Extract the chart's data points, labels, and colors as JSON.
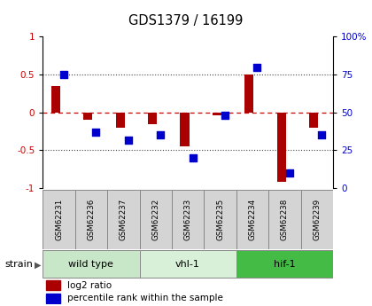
{
  "title": "GDS1379 / 16199",
  "samples": [
    "GSM62231",
    "GSM62236",
    "GSM62237",
    "GSM62232",
    "GSM62233",
    "GSM62235",
    "GSM62234",
    "GSM62238",
    "GSM62239"
  ],
  "log2_ratio": [
    0.35,
    -0.1,
    -0.2,
    -0.15,
    -0.45,
    -0.04,
    0.5,
    -0.92,
    -0.2
  ],
  "percentile": [
    75,
    37,
    32,
    35,
    20,
    48,
    80,
    10,
    35
  ],
  "groups": [
    {
      "label": "wild type",
      "start": 0,
      "end": 3,
      "color": "#c8e6c8"
    },
    {
      "label": "vhl-1",
      "start": 3,
      "end": 6,
      "color": "#d8f0d8"
    },
    {
      "label": "hif-1",
      "start": 6,
      "end": 9,
      "color": "#44bb44"
    }
  ],
  "ylim": [
    -1,
    1
  ],
  "y_left_ticks": [
    -1,
    -0.5,
    0,
    0.5,
    1
  ],
  "y_left_labels": [
    "-1",
    "-0.5",
    "0",
    "0.5",
    "1"
  ],
  "y_right_ticks": [
    0,
    25,
    50,
    75,
    100
  ],
  "y_right_tick_positions": [
    -1,
    -0.5,
    0,
    0.5,
    1
  ],
  "y_right_labels": [
    "0",
    "25",
    "50",
    "75",
    "100%"
  ],
  "bar_color": "#aa0000",
  "dot_color": "#0000cc",
  "hline_color": "#cc0000",
  "grid_color": "#444444",
  "bg_color": "#ffffff",
  "strain_label": "strain",
  "legend_log2": "log2 ratio",
  "legend_pct": "percentile rank within the sample"
}
